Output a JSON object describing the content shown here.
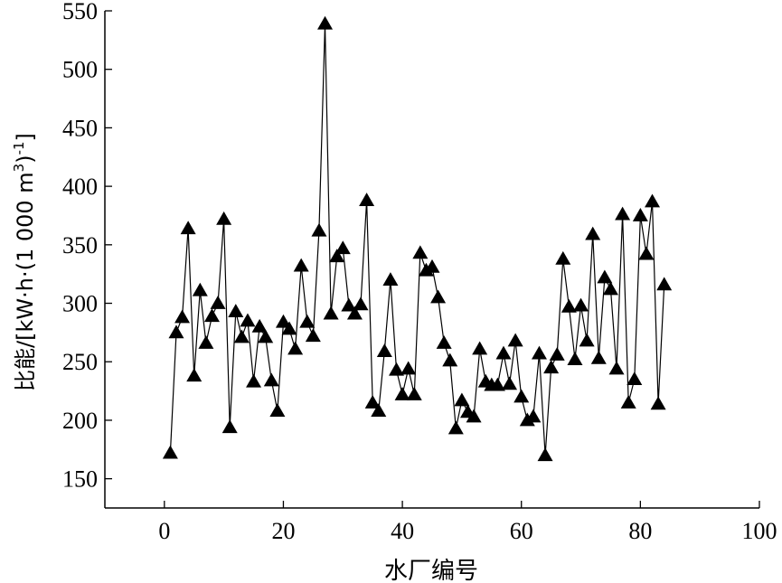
{
  "chart_data": {
    "type": "line",
    "marker": "triangle",
    "title": "",
    "xlabel": "水厂编号",
    "ylabel": "比能/[kW·h·(1 000 m³)⁻¹]",
    "ylabel_parts": {
      "main": "比能/[kW·h·(1 000 m",
      "sup1": "3",
      "mid": ")",
      "sup2": "-1",
      "end": "]"
    },
    "xlim": [
      -10,
      100
    ],
    "ylim": [
      125,
      550
    ],
    "xticks": [
      0,
      20,
      40,
      60,
      80,
      100
    ],
    "yticks": [
      150,
      200,
      250,
      300,
      350,
      400,
      450,
      500,
      550
    ],
    "grid": false,
    "x": [
      1,
      2,
      3,
      4,
      5,
      6,
      7,
      8,
      9,
      10,
      11,
      12,
      13,
      14,
      15,
      16,
      17,
      18,
      19,
      20,
      21,
      22,
      23,
      24,
      25,
      26,
      27,
      28,
      29,
      30,
      31,
      32,
      33,
      34,
      35,
      36,
      37,
      38,
      39,
      40,
      41,
      42,
      43,
      44,
      45,
      46,
      47,
      48,
      49,
      50,
      51,
      52,
      53,
      54,
      55,
      56,
      57,
      58,
      59,
      60,
      61,
      62,
      63,
      64,
      65,
      66,
      67,
      68,
      69,
      70,
      71,
      72,
      73,
      74,
      75,
      76,
      77,
      78,
      79,
      80,
      81,
      82,
      83,
      84
    ],
    "y": [
      172,
      275,
      288,
      364,
      238,
      311,
      266,
      289,
      300,
      372,
      194,
      293,
      271,
      285,
      233,
      280,
      271,
      234,
      208,
      284,
      278,
      261,
      332,
      284,
      272,
      362,
      539,
      291,
      340,
      347,
      298,
      291,
      299,
      388,
      215,
      208,
      259,
      320,
      243,
      222,
      244,
      222,
      343,
      328,
      331,
      305,
      266,
      251,
      193,
      217,
      207,
      203,
      261,
      233,
      230,
      230,
      257,
      231,
      268,
      220,
      200,
      203,
      257,
      170,
      245,
      256,
      338,
      297,
      252,
      298,
      268,
      359,
      253,
      322,
      312,
      244,
      376,
      215,
      235,
      375,
      342,
      387,
      214,
      316
    ]
  }
}
